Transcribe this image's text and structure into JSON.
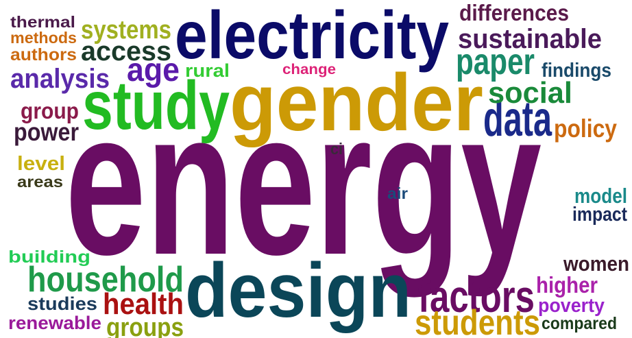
{
  "words": [
    {
      "text": "energy",
      "color": "#690d63"
    },
    {
      "text": "gender",
      "color": "#cc9a06"
    },
    {
      "text": "electricity",
      "color": "#0b0b68"
    },
    {
      "text": "study",
      "color": "#22bb22"
    },
    {
      "text": "design",
      "color": "#0b4658"
    },
    {
      "text": "data",
      "color": "#1a2a8a"
    },
    {
      "text": "factors",
      "color": "#690d63"
    },
    {
      "text": "students",
      "color": "#cc9a06"
    },
    {
      "text": "household",
      "color": "#1f9a4a"
    },
    {
      "text": "health",
      "color": "#aa1111"
    },
    {
      "text": "groups",
      "color": "#8aa010"
    },
    {
      "text": "renewable",
      "color": "#9a1a9a"
    },
    {
      "text": "studies",
      "color": "#1a3a5a"
    },
    {
      "text": "building",
      "color": "#22cc55"
    },
    {
      "text": "paper",
      "color": "#1a8a6a"
    },
    {
      "text": "sustainable",
      "color": "#4a1a5a"
    },
    {
      "text": "differences",
      "color": "#5a1a4a"
    },
    {
      "text": "findings",
      "color": "#1a4a6a"
    },
    {
      "text": "social",
      "color": "#1a8a3a"
    },
    {
      "text": "policy",
      "color": "#cc6a10"
    },
    {
      "text": "systems",
      "color": "#a0b020"
    },
    {
      "text": "access",
      "color": "#1a3a2a"
    },
    {
      "text": "age",
      "color": "#5a1aaa"
    },
    {
      "text": "rural",
      "color": "#33cc33"
    },
    {
      "text": "change",
      "color": "#dd2277"
    },
    {
      "text": "analysis",
      "color": "#5a2aaa"
    },
    {
      "text": "thermal",
      "color": "#4a1a4a"
    },
    {
      "text": "methods",
      "color": "#cc6a10"
    },
    {
      "text": "authors",
      "color": "#cc6a10"
    },
    {
      "text": "group",
      "color": "#8a1a4a"
    },
    {
      "text": "power",
      "color": "#3a1a3a"
    },
    {
      "text": "level",
      "color": "#c8b010"
    },
    {
      "text": "areas",
      "color": "#3a3a1a"
    },
    {
      "text": "ci",
      "color": "#3a2a3a"
    },
    {
      "text": "air",
      "color": "#1a4a7a"
    },
    {
      "text": "model",
      "color": "#1a8a8a"
    },
    {
      "text": "impact",
      "color": "#1a2a5a"
    },
    {
      "text": "women",
      "color": "#3a1a2a"
    },
    {
      "text": "higher",
      "color": "#aa22aa"
    },
    {
      "text": "poverty",
      "color": "#9a22cc"
    },
    {
      "text": "compared",
      "color": "#1a3a1a"
    }
  ]
}
